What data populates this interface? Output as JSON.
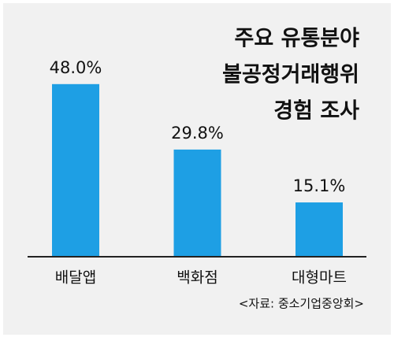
{
  "chart_data": {
    "type": "bar",
    "title_lines": [
      "주요 유통분야",
      "불공정거래행위",
      "경험 조사"
    ],
    "categories": [
      "배달앱",
      "백화점",
      "대형마트"
    ],
    "values": [
      48.0,
      29.8,
      15.1
    ],
    "value_labels": [
      "48.0%",
      "29.8%",
      "15.1%"
    ],
    "color": "#1e9fe4",
    "ylim": [
      0,
      60
    ],
    "source": "<자료: 중소기업중앙회>"
  }
}
